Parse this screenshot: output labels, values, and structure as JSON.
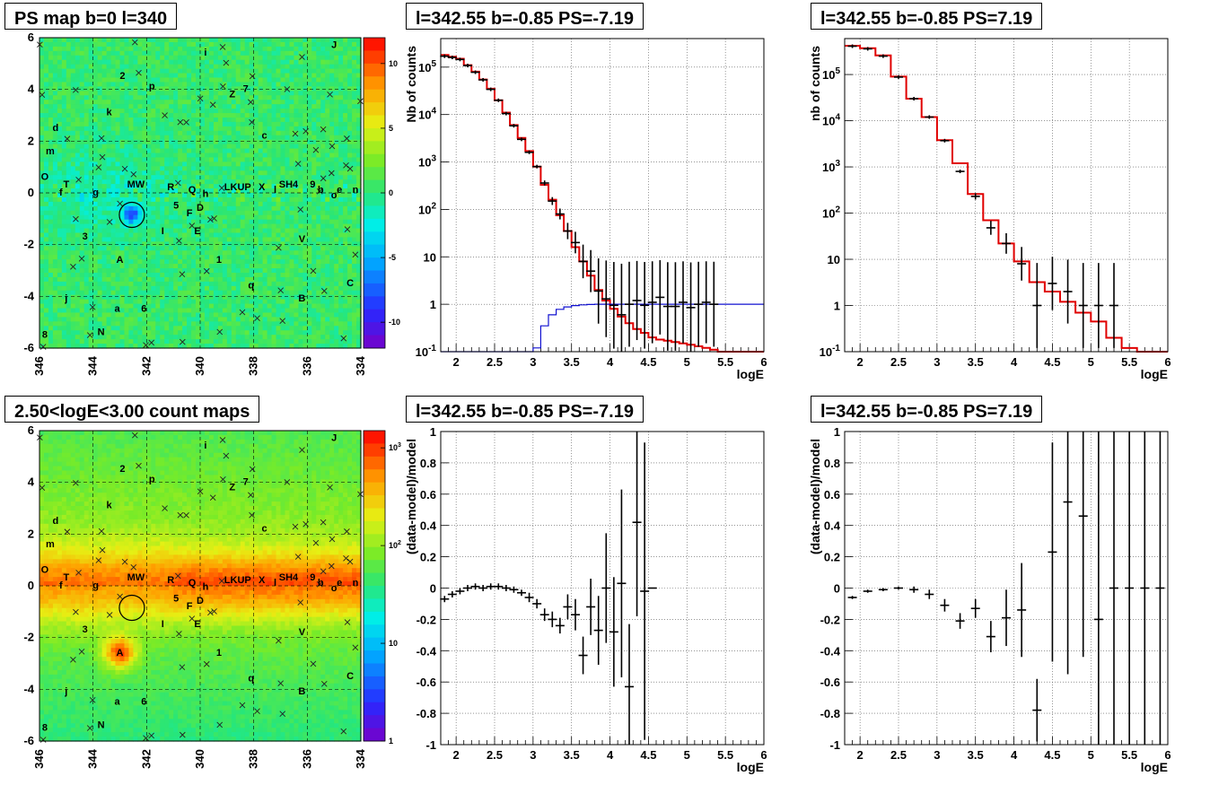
{
  "chart_data": [
    {
      "type": "heatmap",
      "title": "PS map b=0 l=340",
      "xlabel": "",
      "ylabel": "",
      "xlim": [
        346,
        334
      ],
      "ylim": [
        -6,
        6
      ],
      "x_ticks": [
        "346",
        "344",
        "342",
        "340",
        "338",
        "336",
        "334"
      ],
      "y_ticks": [
        "6",
        "4",
        "2",
        "0",
        "-2",
        "-4",
        "-6"
      ],
      "colorbar": {
        "scale": "linear",
        "range": [
          -12,
          12
        ],
        "ticks": [
          "10",
          "5",
          "0",
          "-5",
          "-10"
        ]
      },
      "grid": true,
      "circle": {
        "l": 342.55,
        "b": -0.85
      },
      "source_labels": [
        {
          "t": "J",
          "l": 335.0,
          "b": 5.6
        },
        {
          "t": "i",
          "l": 339.8,
          "b": 5.3
        },
        {
          "t": "2",
          "l": 342.9,
          "b": 4.4
        },
        {
          "t": "p",
          "l": 341.8,
          "b": 4.0
        },
        {
          "t": "Z",
          "l": 338.8,
          "b": 3.7
        },
        {
          "t": "7",
          "l": 338.3,
          "b": 3.9
        },
        {
          "t": "k",
          "l": 343.4,
          "b": 3.0
        },
        {
          "t": "d",
          "l": 345.4,
          "b": 2.4
        },
        {
          "t": "c",
          "l": 337.6,
          "b": 2.1
        },
        {
          "t": "m",
          "l": 345.6,
          "b": 1.5
        },
        {
          "t": "O",
          "l": 345.8,
          "b": 0.5
        },
        {
          "t": "T",
          "l": 345.0,
          "b": 0.2
        },
        {
          "t": "f",
          "l": 345.2,
          "b": -0.1
        },
        {
          "t": "g",
          "l": 343.9,
          "b": -0.1
        },
        {
          "t": "MW",
          "l": 342.4,
          "b": 0.2
        },
        {
          "t": "R",
          "l": 341.1,
          "b": 0.1
        },
        {
          "t": "Q",
          "l": 340.3,
          "b": 0.0
        },
        {
          "t": "h",
          "l": 339.8,
          "b": -0.15
        },
        {
          "t": "LKUP",
          "l": 338.6,
          "b": 0.1
        },
        {
          "t": "X",
          "l": 337.7,
          "b": 0.1
        },
        {
          "t": "l",
          "l": 337.2,
          "b": 0.0
        },
        {
          "t": "SH4",
          "l": 336.7,
          "b": 0.2
        },
        {
          "t": "9",
          "l": 335.8,
          "b": 0.2
        },
        {
          "t": "b",
          "l": 335.5,
          "b": 0.0
        },
        {
          "t": "o",
          "l": 335.0,
          "b": -0.2
        },
        {
          "t": "e",
          "l": 334.8,
          "b": 0.0
        },
        {
          "t": "n",
          "l": 334.2,
          "b": 0.0
        },
        {
          "t": "5",
          "l": 340.9,
          "b": -0.6
        },
        {
          "t": "D",
          "l": 340.0,
          "b": -0.7
        },
        {
          "t": "F",
          "l": 340.4,
          "b": -0.9
        },
        {
          "t": "I",
          "l": 341.4,
          "b": -1.6
        },
        {
          "t": "E",
          "l": 340.1,
          "b": -1.6
        },
        {
          "t": "3",
          "l": 344.3,
          "b": -1.8
        },
        {
          "t": "V",
          "l": 336.2,
          "b": -1.9
        },
        {
          "t": "A",
          "l": 343.0,
          "b": -2.7
        },
        {
          "t": "1",
          "l": 339.3,
          "b": -2.7
        },
        {
          "t": "q",
          "l": 338.1,
          "b": -3.7
        },
        {
          "t": "C",
          "l": 334.4,
          "b": -3.6
        },
        {
          "t": "j",
          "l": 345.0,
          "b": -4.2
        },
        {
          "t": "B",
          "l": 336.2,
          "b": -4.2
        },
        {
          "t": "a",
          "l": 343.1,
          "b": -4.6
        },
        {
          "t": "6",
          "l": 342.1,
          "b": -4.6
        },
        {
          "t": "N",
          "l": 343.7,
          "b": -5.5
        },
        {
          "t": "8",
          "l": 345.8,
          "b": -5.6
        }
      ]
    },
    {
      "type": "line",
      "title": "l=342.55 b=-0.85 PS=-7.19",
      "xlabel": "logE",
      "ylabel": "Nb of counts",
      "xlim": [
        1.8,
        6
      ],
      "ylim": [
        0.1,
        400000
      ],
      "yscale": "log",
      "x_ticks": [
        "2",
        "2.5",
        "3",
        "3.5",
        "4",
        "4.5",
        "5",
        "5.5",
        "6"
      ],
      "y_ticks": [
        "10^5",
        "10^4",
        "10^3",
        "10^2",
        "10",
        "1",
        "10^-1"
      ],
      "grid": true,
      "series": [
        {
          "kind": "step",
          "color": "#e00000",
          "edges": [
            1.8,
            1.9,
            2.0,
            2.1,
            2.2,
            2.3,
            2.4,
            2.5,
            2.6,
            2.7,
            2.8,
            2.9,
            3.0,
            3.1,
            3.2,
            3.3,
            3.4,
            3.5,
            3.6,
            3.7,
            3.8,
            3.9,
            4.0,
            4.1,
            4.2,
            4.3,
            4.4,
            4.5,
            4.6,
            4.7,
            4.8,
            4.9,
            5.0,
            5.1,
            5.2,
            5.3,
            5.4,
            5.5,
            5.6,
            5.7,
            5.8,
            5.9,
            6.0
          ],
          "values": [
            180000,
            165000,
            150000,
            110000,
            80000,
            55000,
            35000,
            20000,
            11000,
            6000,
            3200,
            1700,
            800,
            330,
            160,
            75,
            35,
            16,
            8,
            4,
            2,
            1.2,
            0.8,
            0.55,
            0.4,
            0.3,
            0.25,
            0.2,
            0.18,
            0.17,
            0.16,
            0.15,
            0.14,
            0.13,
            0.12,
            0.11,
            0.1,
            0.1,
            0.1,
            0.1,
            0.1,
            0.1
          ]
        },
        {
          "kind": "step",
          "color": "#1010d0",
          "edges": [
            1.8,
            2.0,
            2.2,
            2.4,
            2.6,
            2.8,
            3.0,
            3.1,
            3.2,
            3.3,
            3.4,
            3.5,
            3.6,
            3.7,
            3.8,
            3.9,
            4.0,
            6.0
          ],
          "values": [
            0.05,
            0.05,
            0.05,
            0.05,
            0.05,
            0.05,
            0.12,
            0.35,
            0.6,
            0.78,
            0.88,
            0.94,
            0.97,
            0.99,
            1.0,
            1.0,
            1.0
          ]
        },
        {
          "kind": "points",
          "color": "#000000",
          "x": [
            1.85,
            1.95,
            2.05,
            2.15,
            2.25,
            2.35,
            2.45,
            2.55,
            2.65,
            2.75,
            2.85,
            2.95,
            3.05,
            3.15,
            3.25,
            3.35,
            3.45,
            3.55,
            3.65,
            3.75,
            3.85,
            3.95,
            4.05,
            4.15,
            4.25,
            4.35,
            4.45,
            4.55,
            4.65,
            4.75,
            4.85,
            4.95,
            5.05,
            5.15,
            5.25,
            5.35
          ],
          "y": [
            170000,
            160000,
            145000,
            108000,
            78000,
            54000,
            34000,
            20000,
            10500,
            5800,
            3000,
            1600,
            800,
            360,
            150,
            80,
            35,
            20,
            8,
            5,
            1.9,
            1.3,
            0.95,
            0.6,
            1.0,
            1.2,
            0.95,
            1.1,
            1.4,
            0.9,
            0.9,
            1.1,
            0.85,
            1.0,
            1.1,
            1.0
          ]
        }
      ]
    },
    {
      "type": "line",
      "title": "l=342.55 b=-0.85 PS=7.19",
      "xlabel": "logE",
      "ylabel": "nb of counts",
      "xlim": [
        1.8,
        6
      ],
      "ylim": [
        0.1,
        600000
      ],
      "yscale": "log",
      "x_ticks": [
        "2",
        "2.5",
        "3",
        "3.5",
        "4",
        "4.5",
        "5",
        "5.5",
        "6"
      ],
      "y_ticks": [
        "10^5",
        "10^4",
        "10^3",
        "10^2",
        "10",
        "1",
        "10^-1"
      ],
      "grid": true,
      "series": [
        {
          "kind": "step",
          "color": "#e00000",
          "edges": [
            1.8,
            2.0,
            2.2,
            2.4,
            2.6,
            2.8,
            3.0,
            3.2,
            3.4,
            3.6,
            3.8,
            4.0,
            4.2,
            4.4,
            4.6,
            4.8,
            5.0,
            5.2,
            5.4,
            5.6,
            5.8,
            6.0
          ],
          "values": [
            420000,
            370000,
            260000,
            90000,
            30000,
            12000,
            3800,
            1200,
            260,
            70,
            22,
            9,
            3.2,
            2.0,
            1.2,
            0.7,
            0.45,
            0.2,
            0.12,
            0.1,
            0.1
          ]
        },
        {
          "kind": "points",
          "color": "#000000",
          "x": [
            1.9,
            2.1,
            2.3,
            2.5,
            2.7,
            2.9,
            3.1,
            3.3,
            3.5,
            3.7,
            3.9,
            4.1,
            4.3,
            4.5,
            4.7,
            4.9,
            5.1,
            5.3
          ],
          "y": [
            410000,
            360000,
            250000,
            88000,
            30000,
            12000,
            3700,
            800,
            230,
            48,
            22,
            8,
            1,
            3,
            2,
            1,
            1,
            1
          ]
        }
      ]
    },
    {
      "type": "heatmap",
      "title": "2.50<logE<3.00 count maps",
      "xlabel": "",
      "ylabel": "",
      "xlim": [
        346,
        334
      ],
      "ylim": [
        -6,
        6
      ],
      "x_ticks": [
        "346",
        "344",
        "342",
        "340",
        "338",
        "336",
        "334"
      ],
      "y_ticks": [
        "6",
        "4",
        "2",
        "0",
        "-2",
        "-4",
        "-6"
      ],
      "colorbar": {
        "scale": "log",
        "range": [
          1,
          1500
        ],
        "ticks": [
          "10^3",
          "10^2",
          "10",
          "1"
        ]
      },
      "grid": true,
      "circle": {
        "l": 342.55,
        "b": -0.85
      }
    },
    {
      "type": "scatter",
      "title": "l=342.55 b=-0.85 PS=-7.19",
      "xlabel": "logE",
      "ylabel": "(data-model)/model",
      "xlim": [
        1.8,
        6
      ],
      "ylim": [
        -1,
        1
      ],
      "x_ticks": [
        "2",
        "2.5",
        "3",
        "3.5",
        "4",
        "4.5",
        "5",
        "5.5",
        "6"
      ],
      "y_ticks": [
        "1",
        "0.8",
        "0.6",
        "0.4",
        "0.2",
        "0",
        "-0.2",
        "-0.4",
        "-0.6",
        "-0.8",
        "-1"
      ],
      "grid": true,
      "x": [
        1.85,
        1.95,
        2.05,
        2.15,
        2.25,
        2.35,
        2.45,
        2.55,
        2.65,
        2.75,
        2.85,
        2.95,
        3.05,
        3.15,
        3.25,
        3.35,
        3.45,
        3.55,
        3.65,
        3.75,
        3.85,
        3.95,
        4.05,
        4.15,
        4.25,
        4.35,
        4.45,
        4.55
      ],
      "y": [
        -0.07,
        -0.04,
        -0.02,
        0.0,
        0.01,
        0.0,
        0.01,
        0.01,
        0.0,
        -0.01,
        -0.03,
        -0.06,
        -0.1,
        -0.17,
        -0.2,
        -0.24,
        -0.12,
        -0.17,
        -0.43,
        -0.12,
        -0.27,
        0.0,
        -0.28,
        0.03,
        -0.63,
        0.42,
        -0.02,
        0.0
      ],
      "err": [
        0.02,
        0.02,
        0.02,
        0.02,
        0.02,
        0.02,
        0.02,
        0.02,
        0.02,
        0.02,
        0.02,
        0.03,
        0.03,
        0.04,
        0.05,
        0.05,
        0.08,
        0.1,
        0.12,
        0.18,
        0.22,
        0.35,
        0.35,
        0.6,
        0.4,
        0.6,
        0.95,
        0.0
      ]
    },
    {
      "type": "scatter",
      "title": "l=342.55 b=-0.85 PS=7.19",
      "xlabel": "logE",
      "ylabel": "(data-model)/model",
      "xlim": [
        1.8,
        6
      ],
      "ylim": [
        -1,
        1
      ],
      "x_ticks": [
        "2",
        "2.5",
        "3",
        "3.5",
        "4",
        "4.5",
        "5",
        "5.5",
        "6"
      ],
      "y_ticks": [
        "1",
        "0.8",
        "0.6",
        "0.4",
        "0.2",
        "0",
        "-0.2",
        "-0.4",
        "-0.6",
        "-0.8",
        "-1"
      ],
      "grid": true,
      "x": [
        1.9,
        2.1,
        2.3,
        2.5,
        2.7,
        2.9,
        3.1,
        3.3,
        3.5,
        3.7,
        3.9,
        4.1,
        4.3,
        4.5,
        4.7,
        4.9,
        5.1,
        5.3,
        5.5,
        5.7,
        5.9
      ],
      "y": [
        -0.06,
        -0.02,
        -0.01,
        0.0,
        -0.01,
        -0.04,
        -0.11,
        -0.21,
        -0.13,
        -0.31,
        -0.19,
        -0.14,
        -0.78,
        0.23,
        0.55,
        0.46,
        -0.2,
        0.0,
        0.0,
        0.0,
        0.0
      ],
      "err": [
        0.01,
        0.01,
        0.01,
        0.01,
        0.02,
        0.03,
        0.04,
        0.05,
        0.06,
        0.1,
        0.18,
        0.3,
        0.2,
        0.7,
        1.1,
        0.9,
        1.3,
        1.3,
        1.3,
        1.3,
        1.3
      ]
    }
  ]
}
